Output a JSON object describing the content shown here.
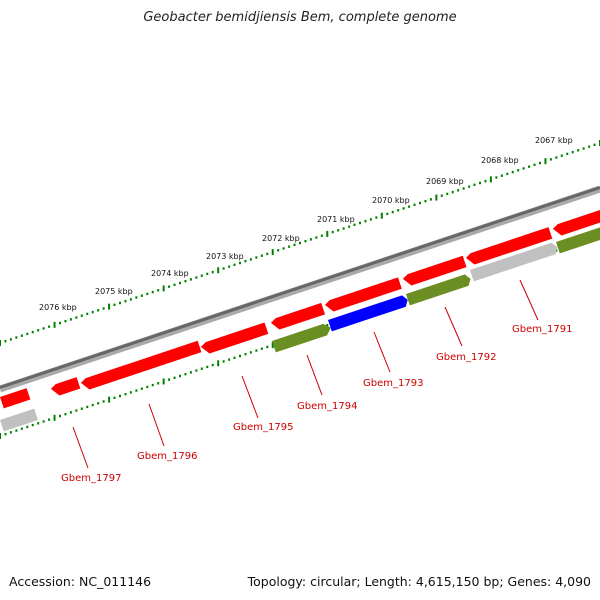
{
  "title": "Geobacter bemidjiensis Bem, complete genome",
  "footer": {
    "accession": "Accession: NC_011146",
    "summary": "Topology: circular; Length: 4,615,150 bp; Genes: 4,090"
  },
  "colors": {
    "forward_gene": "#ff0000",
    "reverse_gene": "#6b8e23",
    "highlight_gene": "#0000ff",
    "pseudo_gene": "#c0c0c0",
    "backbone": "#888888",
    "ticks": "#008000",
    "gene_label": "#cc0000"
  },
  "scale_labels": [
    "2067 kbp",
    "2068 kbp",
    "2069 kbp",
    "2070 kbp",
    "2071 kbp",
    "2072 kbp",
    "2073 kbp",
    "2074 kbp",
    "2075 kbp",
    "2076 kbp"
  ],
  "gene_labels": [
    "Gbem_1791",
    "Gbem_1792",
    "Gbem_1793",
    "Gbem_1794",
    "Gbem_1795",
    "Gbem_1796",
    "Gbem_1797"
  ]
}
